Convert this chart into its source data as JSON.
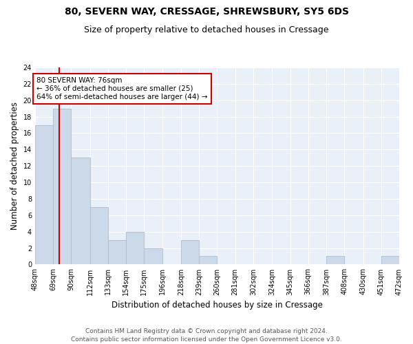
{
  "title1": "80, SEVERN WAY, CRESSAGE, SHREWSBURY, SY5 6DS",
  "title2": "Size of property relative to detached houses in Cressage",
  "xlabel": "Distribution of detached houses by size in Cressage",
  "ylabel": "Number of detached properties",
  "bar_color": "#ccd9e8",
  "bar_edge_color": "#aabcce",
  "bins": [
    48,
    69,
    90,
    112,
    133,
    154,
    175,
    196,
    218,
    239,
    260,
    281,
    302,
    324,
    345,
    366,
    387,
    408,
    430,
    451,
    472
  ],
  "counts": [
    17,
    19,
    13,
    7,
    3,
    4,
    2,
    0,
    3,
    1,
    0,
    0,
    0,
    0,
    0,
    0,
    1,
    0,
    0,
    1
  ],
  "tick_labels": [
    "48sqm",
    "69sqm",
    "90sqm",
    "112sqm",
    "133sqm",
    "154sqm",
    "175sqm",
    "196sqm",
    "218sqm",
    "239sqm",
    "260sqm",
    "281sqm",
    "302sqm",
    "324sqm",
    "345sqm",
    "366sqm",
    "387sqm",
    "408sqm",
    "430sqm",
    "451sqm",
    "472sqm"
  ],
  "vline_x": 76,
  "vline_color": "#cc0000",
  "annotation_text": "80 SEVERN WAY: 76sqm\n← 36% of detached houses are smaller (25)\n64% of semi-detached houses are larger (44) →",
  "annotation_box_color": "#ffffff",
  "annotation_box_edge": "#cc0000",
  "ylim": [
    0,
    24
  ],
  "yticks": [
    0,
    2,
    4,
    6,
    8,
    10,
    12,
    14,
    16,
    18,
    20,
    22,
    24
  ],
  "background_color": "#eaf0f8",
  "footer_text": "Contains HM Land Registry data © Crown copyright and database right 2024.\nContains public sector information licensed under the Open Government Licence v3.0.",
  "title1_fontsize": 10,
  "title2_fontsize": 9,
  "xlabel_fontsize": 8.5,
  "ylabel_fontsize": 8.5,
  "annotation_fontsize": 7.5,
  "footer_fontsize": 6.5,
  "tick_fontsize": 7
}
